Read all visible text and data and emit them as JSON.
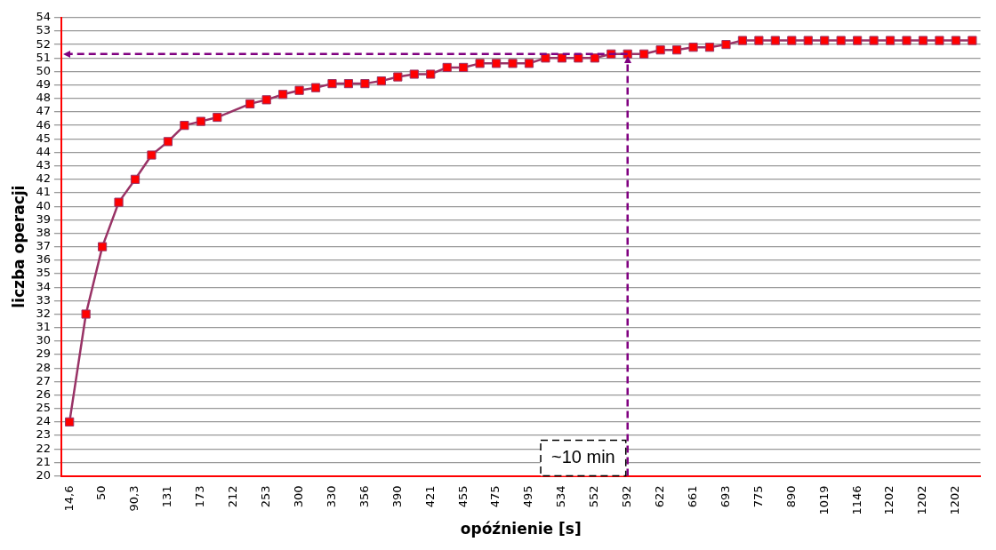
{
  "chart_data": {
    "type": "line",
    "xlabel": "opóźnienie [s]",
    "ylabel": "liczba operacji",
    "categories": [
      "14,6",
      null,
      "50",
      null,
      "90,3",
      null,
      "131",
      null,
      "173",
      null,
      "212",
      null,
      "253",
      null,
      "300",
      null,
      "330",
      null,
      "356",
      null,
      "390",
      null,
      "421",
      null,
      "455",
      null,
      "475",
      null,
      "495",
      null,
      "534",
      null,
      "552",
      null,
      "592",
      null,
      "622",
      null,
      "661",
      null,
      "693",
      null,
      "775",
      null,
      "890",
      null,
      "1019",
      null,
      "1146",
      null,
      "1202",
      null,
      "1202",
      null,
      "1202",
      null
    ],
    "series": [
      {
        "color": "#993366",
        "values": [
          24,
          32,
          37,
          40.3,
          42,
          43.8,
          44.8,
          46,
          46.3,
          46.6,
          null,
          47.6,
          47.9,
          48.3,
          48.6,
          48.8,
          49.1,
          49.1,
          49.1,
          49.3,
          49.6,
          49.8,
          49.8,
          50.3,
          50.3,
          50.6,
          50.6,
          50.6,
          50.6,
          51.0,
          51.0,
          51.0,
          51.0,
          51.3,
          51.3,
          51.3,
          51.6,
          51.6,
          51.8,
          51.8,
          52.0,
          52.3,
          52.3,
          52.3,
          52.3,
          52.3,
          52.3,
          52.3,
          52.3,
          52.3,
          52.3,
          52.3,
          52.3,
          52.3,
          52.3,
          52.3
        ]
      }
    ],
    "marker": "square",
    "line_style": "solid",
    "grid": "y",
    "legend": false,
    "ylim": [
      20,
      54
    ],
    "yticks": [
      20,
      21,
      22,
      23,
      24,
      25,
      26,
      27,
      28,
      29,
      30,
      31,
      32,
      33,
      34,
      35,
      36,
      37,
      38,
      39,
      40,
      41,
      42,
      43,
      44,
      45,
      46,
      47,
      48,
      49,
      50,
      51,
      52,
      53,
      54
    ],
    "ref_lines": [
      {
        "axis": "y",
        "value": 51.3,
        "color": "#800080",
        "line_style": "dashed"
      },
      {
        "axis": "x",
        "value": "592",
        "label": "~10 min",
        "color": "#800080",
        "line_style": "dashed"
      }
    ]
  }
}
